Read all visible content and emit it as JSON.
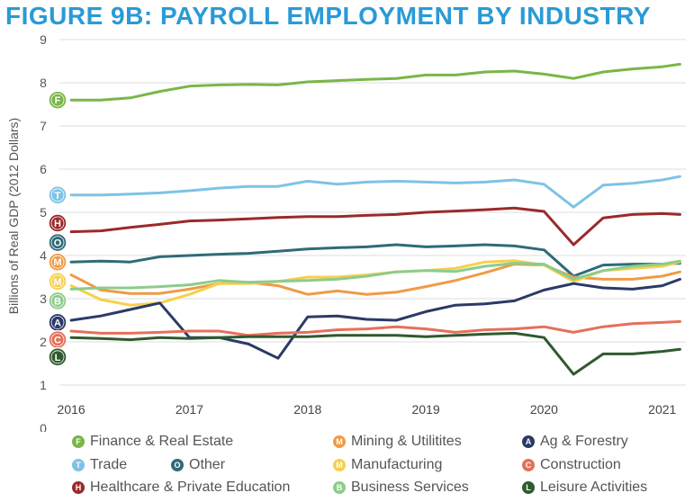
{
  "chart_data": {
    "type": "line",
    "title": "FIGURE 9B: PAYROLL EMPLOYMENT BY INDUSTRY",
    "xlabel": "",
    "ylabel": "Billions of Real GDP (2012 Dollars)",
    "ylim": [
      0,
      9
    ],
    "xlim": [
      2015.9,
      2021.2
    ],
    "yticks": [
      0,
      1,
      2,
      3,
      4,
      5,
      6,
      7,
      8,
      9
    ],
    "xticks": [
      2016,
      2017,
      2018,
      2019,
      2020,
      2021
    ],
    "x": [
      2016.0,
      2016.25,
      2016.5,
      2016.75,
      2017.0,
      2017.25,
      2017.5,
      2017.75,
      2018.0,
      2018.25,
      2018.5,
      2018.75,
      2019.0,
      2019.25,
      2019.5,
      2019.75,
      2020.0,
      2020.25,
      2020.5,
      2020.75,
      2021.0,
      2021.15
    ],
    "series": [
      {
        "name": "Finance & Real Estate",
        "letter": "F",
        "color": "#7ab648",
        "values": [
          7.6,
          7.6,
          7.65,
          7.8,
          7.92,
          7.95,
          7.96,
          7.95,
          8.02,
          8.05,
          8.08,
          8.1,
          8.18,
          8.18,
          8.25,
          8.27,
          8.2,
          8.1,
          8.25,
          8.32,
          8.37,
          8.43
        ]
      },
      {
        "name": "Trade",
        "letter": "T",
        "color": "#7ec3e6",
        "values": [
          5.4,
          5.4,
          5.42,
          5.45,
          5.5,
          5.56,
          5.6,
          5.6,
          5.72,
          5.65,
          5.7,
          5.72,
          5.7,
          5.68,
          5.7,
          5.75,
          5.65,
          5.12,
          5.63,
          5.67,
          5.75,
          5.83
        ]
      },
      {
        "name": "Healthcare & Private Education",
        "letter": "H",
        "color": "#9b2a2a",
        "values": [
          4.55,
          4.57,
          4.65,
          4.72,
          4.8,
          4.82,
          4.85,
          4.88,
          4.9,
          4.9,
          4.93,
          4.95,
          5.0,
          5.03,
          5.06,
          5.1,
          5.02,
          4.25,
          4.87,
          4.95,
          4.97,
          4.95
        ]
      },
      {
        "name": "Other",
        "letter": "O",
        "color": "#2f6b77",
        "values": [
          3.85,
          3.87,
          3.85,
          3.97,
          4.0,
          4.03,
          4.05,
          4.1,
          4.15,
          4.18,
          4.2,
          4.25,
          4.2,
          4.22,
          4.25,
          4.22,
          4.13,
          3.52,
          3.78,
          3.8,
          3.8,
          3.82
        ]
      },
      {
        "name": "Mining & Utilitites",
        "letter": "M",
        "color": "#ef9b45",
        "values": [
          3.55,
          3.2,
          3.12,
          3.12,
          3.22,
          3.35,
          3.38,
          3.3,
          3.1,
          3.18,
          3.1,
          3.15,
          3.28,
          3.42,
          3.6,
          3.8,
          3.78,
          3.5,
          3.45,
          3.45,
          3.52,
          3.62
        ]
      },
      {
        "name": "Manufacturing",
        "letter": "M",
        "color": "#f7cf4c",
        "values": [
          3.3,
          2.98,
          2.85,
          2.9,
          3.1,
          3.35,
          3.35,
          3.4,
          3.5,
          3.5,
          3.55,
          3.62,
          3.65,
          3.7,
          3.85,
          3.88,
          3.78,
          3.4,
          3.65,
          3.7,
          3.75,
          3.85
        ]
      },
      {
        "name": "Business Services",
        "letter": "B",
        "color": "#8ccc8c",
        "values": [
          3.22,
          3.25,
          3.25,
          3.28,
          3.32,
          3.42,
          3.38,
          3.4,
          3.42,
          3.45,
          3.52,
          3.62,
          3.65,
          3.63,
          3.75,
          3.82,
          3.8,
          3.45,
          3.65,
          3.75,
          3.8,
          3.87
        ]
      },
      {
        "name": "Ag & Forestry",
        "letter": "A",
        "color": "#2b3a67",
        "values": [
          2.5,
          2.6,
          2.75,
          2.9,
          2.1,
          2.1,
          1.95,
          1.62,
          2.58,
          2.6,
          2.52,
          2.5,
          2.7,
          2.85,
          2.88,
          2.95,
          3.2,
          3.35,
          3.25,
          3.22,
          3.3,
          3.45
        ]
      },
      {
        "name": "Construction",
        "letter": "C",
        "color": "#e5705a",
        "values": [
          2.25,
          2.2,
          2.2,
          2.22,
          2.25,
          2.25,
          2.15,
          2.2,
          2.22,
          2.28,
          2.3,
          2.35,
          2.3,
          2.22,
          2.28,
          2.3,
          2.35,
          2.22,
          2.35,
          2.42,
          2.45,
          2.47
        ]
      },
      {
        "name": "Leisure Activities",
        "letter": "L",
        "color": "#2f5a2f",
        "values": [
          2.1,
          2.08,
          2.05,
          2.1,
          2.08,
          2.1,
          2.12,
          2.12,
          2.12,
          2.15,
          2.15,
          2.15,
          2.12,
          2.15,
          2.18,
          2.2,
          2.1,
          1.25,
          1.72,
          1.72,
          1.78,
          1.83
        ]
      }
    ],
    "end_markers": [
      {
        "letter": "F",
        "color": "#7ab648",
        "value": 7.6
      },
      {
        "letter": "T",
        "color": "#7ec3e6",
        "value": 5.4
      },
      {
        "letter": "H",
        "color": "#9b2a2a",
        "value": 4.75
      },
      {
        "letter": "O",
        "color": "#2f6b77",
        "value": 4.3
      },
      {
        "letter": "M",
        "color": "#ef9b45",
        "value": 3.85
      },
      {
        "letter": "M",
        "color": "#f7cf4c",
        "value": 3.4
      },
      {
        "letter": "B",
        "color": "#8ccc8c",
        "value": 2.95
      },
      {
        "letter": "A",
        "color": "#2b3a67",
        "value": 2.45
      },
      {
        "letter": "C",
        "color": "#e5705a",
        "value": 2.05
      },
      {
        "letter": "L",
        "color": "#2f5a2f",
        "value": 1.65
      }
    ],
    "legend": [
      {
        "label": "Finance & Real Estate",
        "letter": "F",
        "color": "#7ab648"
      },
      {
        "label": "Mining & Utilitites",
        "letter": "M",
        "color": "#ef9b45"
      },
      {
        "label": "Ag & Forestry",
        "letter": "A",
        "color": "#2b3a67"
      },
      {
        "label": "Trade",
        "letter": "T",
        "color": "#7ec3e6"
      },
      {
        "label": "Other",
        "letter": "O",
        "color": "#2f6b77"
      },
      {
        "label": "Manufacturing",
        "letter": "M",
        "color": "#f7cf4c"
      },
      {
        "label": "Construction",
        "letter": "C",
        "color": "#e5705a"
      },
      {
        "label": "Healthcare & Private Education",
        "letter": "H",
        "color": "#9b2a2a"
      },
      {
        "label": "Business Services",
        "letter": "B",
        "color": "#8ccc8c"
      },
      {
        "label": "Leisure Activities",
        "letter": "L",
        "color": "#2f5a2f"
      }
    ],
    "grid": "horizontal",
    "legend_position": "bottom"
  }
}
